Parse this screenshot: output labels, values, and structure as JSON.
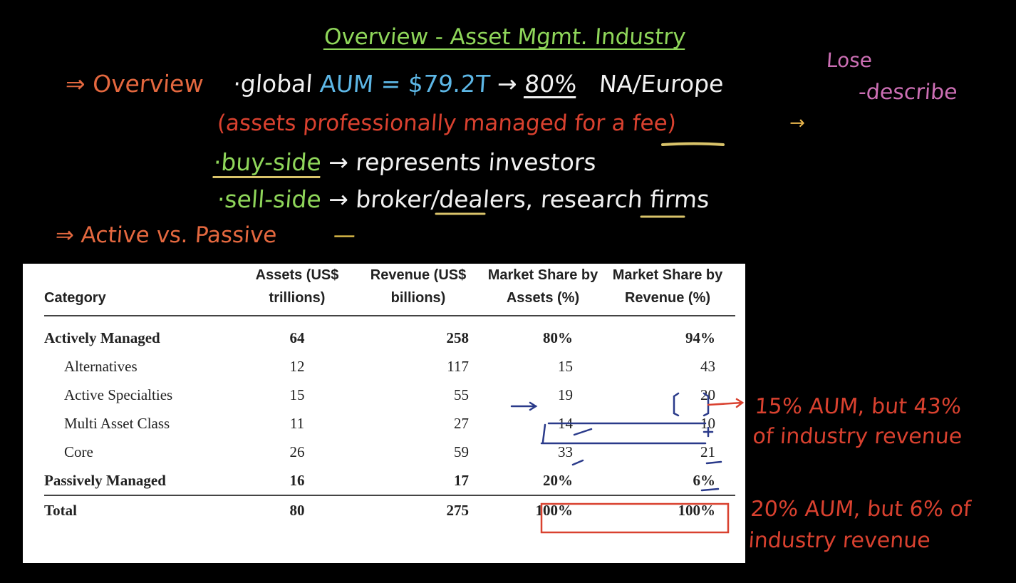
{
  "title": "Overview - Asset Mgmt. Industry",
  "notes": {
    "overview_label": "⇒ Overview",
    "global_aum_prefix": "·global",
    "aum_label": "AUM = $79.2T",
    "arrow": "→",
    "aum_pct": "80%",
    "region": "NA/Europe",
    "definition": "(assets professionally managed for a fee)",
    "buy_side": "·buy-side",
    "buy_side_desc": "→ represents investors",
    "sell_side": "·sell-side",
    "sell_side_desc": "→ broker/dealers, research firms",
    "active_passive": "⇒ Active vs. Passive",
    "lose": "Lose",
    "describe": "-describe",
    "note_alternatives_line1": "15% AUM, but 43%",
    "note_alternatives_line2": "of industry revenue",
    "note_passive_line1": "20% AUM, but 6% of",
    "note_passive_line2": "industry revenue"
  },
  "table": {
    "headers": [
      "Category",
      "Assets (US$ trillions)",
      "Revenue (US$ billions)",
      "Market Share by Assets (%)",
      "Market Share by Revenue (%)"
    ],
    "rows": [
      {
        "category": "Actively Managed",
        "assets": "64",
        "revenue": "258",
        "share_assets": "80%",
        "share_revenue": "94%"
      },
      {
        "category": "Alternatives",
        "assets": "12",
        "revenue": "117",
        "share_assets": "15",
        "share_revenue": "43"
      },
      {
        "category": "Active Specialties",
        "assets": "15",
        "revenue": "55",
        "share_assets": "19",
        "share_revenue": "20"
      },
      {
        "category": "Multi Asset Class",
        "assets": "11",
        "revenue": "27",
        "share_assets": "14",
        "share_revenue": "10"
      },
      {
        "category": "Core",
        "assets": "26",
        "revenue": "59",
        "share_assets": "33",
        "share_revenue": "21"
      },
      {
        "category": "Passively Managed",
        "assets": "16",
        "revenue": "17",
        "share_assets": "20%",
        "share_revenue": "6%"
      },
      {
        "category": "Total",
        "assets": "80",
        "revenue": "275",
        "share_assets": "100%",
        "share_revenue": "100%"
      }
    ]
  },
  "colors": {
    "background": "#000000",
    "title_green": "#8fd65a",
    "orange": "#e4683f",
    "red": "#d9412f",
    "blue": "#5db7e6",
    "pink": "#cc6fb4",
    "highlight_yellow": "#d9c36a",
    "ink_blue": "#2a3a8a"
  }
}
